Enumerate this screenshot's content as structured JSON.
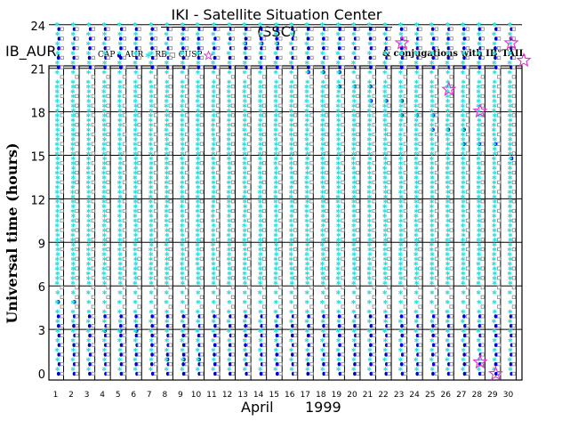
{
  "chart_data": {
    "type": "scatter",
    "title": "IKI - Satellite Situation Center (SSC)",
    "instrument_label": "IB_AUR:",
    "ylabel": "Universal time (hours)",
    "xlabel_month": "April",
    "xlabel_year": "1999",
    "x_ticks": [
      "1",
      "2",
      "3",
      "4",
      "5",
      "6",
      "7",
      "8",
      "9",
      "10",
      "11",
      "12",
      "13",
      "14",
      "15",
      "16",
      "17",
      "18",
      "19",
      "20",
      "21",
      "22",
      "23",
      "24",
      "25",
      "26",
      "27",
      "28",
      "29",
      "30"
    ],
    "y_ticks": [
      "0",
      "3",
      "6",
      "9",
      "12",
      "15",
      "18",
      "21",
      "24"
    ],
    "xlim": [
      1,
      31
    ],
    "ylim": [
      0,
      24
    ],
    "grid": true,
    "legend": [
      {
        "label": "CAP",
        "symbol": "dot",
        "color": "#0000cc"
      },
      {
        "label": "AUR",
        "symbol": "asterisk",
        "color": "#33dddd"
      },
      {
        "label": "RB",
        "symbol": "square",
        "color": "#888888"
      },
      {
        "label": "CUSP",
        "symbol": "star",
        "color": "#dd33cc"
      }
    ],
    "conjugations_label": "& conjugations with IB°TAIL",
    "orbits": [
      1.2,
      2.2,
      3.2,
      4.2,
      5.2,
      6.2,
      7.2,
      8.2,
      9.2,
      10.2,
      11.2,
      12.2,
      13.2,
      14.2,
      15.2,
      16.2,
      17.2,
      18.2,
      19.2,
      20.2,
      21.2,
      22.2,
      23.2,
      24.2,
      25.2,
      26.2,
      27.2,
      28.2,
      29.2,
      30.2
    ],
    "conjunctions": [
      {
        "x": 23.2,
        "y": 22.8
      },
      {
        "x": 26.2,
        "y": 19.6
      },
      {
        "x": 28.2,
        "y": 18.1
      },
      {
        "x": 28.2,
        "y": 0.8
      },
      {
        "x": 29.2,
        "y": 0.0
      },
      {
        "x": 30.2,
        "y": 22.8
      },
      {
        "x": 31.0,
        "y": 21.6
      }
    ]
  }
}
